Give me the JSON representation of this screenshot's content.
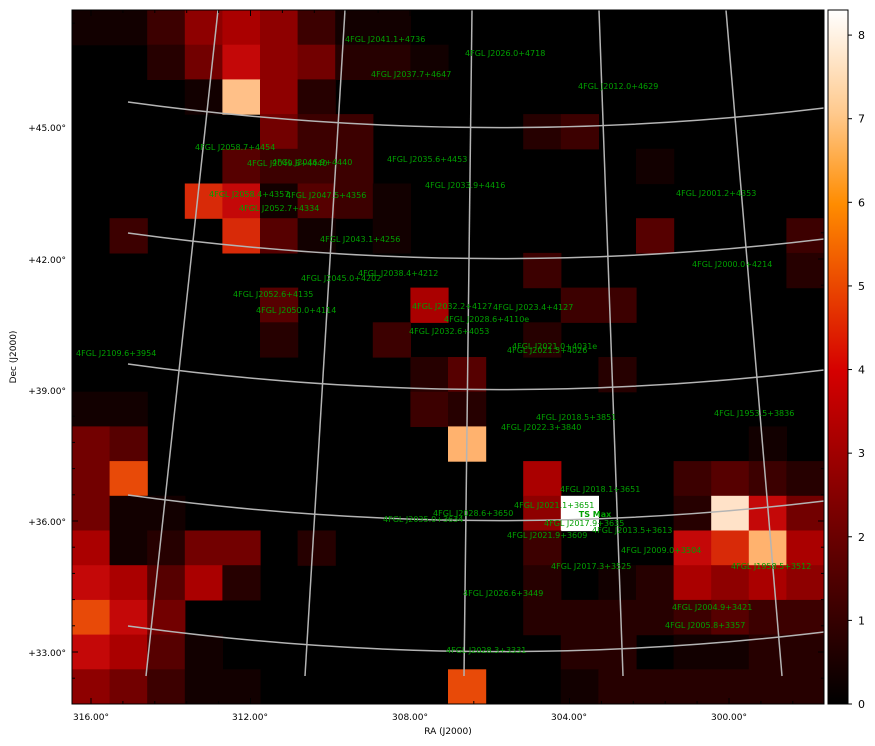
{
  "map": {
    "x_axis_label": "RA (J2000)",
    "y_axis_label": "Dec (J2000)",
    "x_ticks": [
      "316.00°",
      "312.00°",
      "308.00°",
      "304.00°",
      "300.00°"
    ],
    "y_ticks": [
      "+45.00°",
      "+42.00°",
      "+39.00°",
      "+36.00°",
      "+33.00°"
    ],
    "colorbar_ticks": [
      "0",
      "1",
      "2",
      "3",
      "4",
      "5",
      "6",
      "7",
      "8"
    ],
    "colorbar_range": [
      0,
      8.3
    ],
    "colormap": "gist_heat",
    "grid": "on",
    "grid_color": "#b4b4b4",
    "label_color": "#00a000",
    "ts_marker_label": "TS Max",
    "sources": [
      {
        "label": "4FGL J2041.1+4736"
      },
      {
        "label": "4FGL J2026.0+4718"
      },
      {
        "label": "4FGL J2037.7+4647"
      },
      {
        "label": "4FGL J2012.0+4629"
      },
      {
        "label": "4FGL J2058.7+4454"
      },
      {
        "label": "4FGL J2049.8+4440"
      },
      {
        "label": "4FGL J2046.9+4440"
      },
      {
        "label": "4FGL J2035.6+4453"
      },
      {
        "label": "4FGL J2033.9+4416"
      },
      {
        "label": "4FGL J2058.4+4357"
      },
      {
        "label": "4FGL J2047.5+4356"
      },
      {
        "label": "4FGL J2001.2+4353"
      },
      {
        "label": "4FGL J2052.7+4334"
      },
      {
        "label": "4FGL J2043.1+4256"
      },
      {
        "label": "4FGL J2000.0+4214"
      },
      {
        "label": "4FGL J2038.4+4212"
      },
      {
        "label": "4FGL J2045.0+4202"
      },
      {
        "label": "4FGL J2052.6+4135"
      },
      {
        "label": "4FGL J2032.2+4127"
      },
      {
        "label": "4FGL J2023.4+4127"
      },
      {
        "label": "4FGL J2050.0+4114"
      },
      {
        "label": "4FGL J2028.6+4110e"
      },
      {
        "label": "4FGL J2032.6+4053"
      },
      {
        "label": "4FGL J2021.0+4031e"
      },
      {
        "label": "4FGL J2021.5+4026"
      },
      {
        "label": "4FGL J2109.6+3954"
      },
      {
        "label": "4FGL J2018.5+3851"
      },
      {
        "label": "4FGL J1953.5+3836"
      },
      {
        "label": "4FGL J2022.3+3840"
      },
      {
        "label": "4FGL J2021.1+3651"
      },
      {
        "label": "4FGL J2018.1+3651"
      },
      {
        "label": "4FGL J2028.6+3650"
      },
      {
        "label": "4FGL J2035.0+3634"
      },
      {
        "label": "4FGL J2017.9+3635"
      },
      {
        "label": "4FGL J2021.9+3609"
      },
      {
        "label": "4FGL J2013.5+3613"
      },
      {
        "label": "4FGL J2009.0+3504"
      },
      {
        "label": "4FGL J2017.3+3525"
      },
      {
        "label": "4FGL J1958.5+3512"
      },
      {
        "label": "4FGL J2026.6+3449"
      },
      {
        "label": "4FGL J2004.9+3421"
      },
      {
        "label": "4FGL J2005.8+3357"
      },
      {
        "label": "4FGL J2028.3+3331"
      }
    ]
  }
}
